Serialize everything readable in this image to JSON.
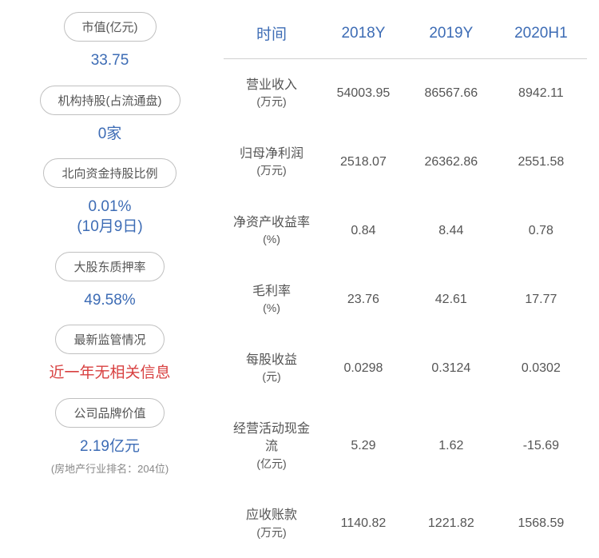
{
  "left_stats": [
    {
      "label": "市值(亿元)",
      "value": "33.75",
      "valueColor": "blue",
      "subtext": ""
    },
    {
      "label": "机构持股(占流通盘)",
      "value": "0家",
      "valueColor": "blue",
      "subtext": ""
    },
    {
      "label": "北向资金持股比例",
      "value": "0.01%\n(10月9日)",
      "valueColor": "blue",
      "subtext": ""
    },
    {
      "label": "大股东质押率",
      "value": "49.58%",
      "valueColor": "blue",
      "subtext": ""
    },
    {
      "label": "最新监管情况",
      "value": "近一年无相关信息",
      "valueColor": "red",
      "subtext": ""
    },
    {
      "label": "公司品牌价值",
      "value": "2.19亿元",
      "valueColor": "blue",
      "subtext": "(房地产行业排名：204位)"
    }
  ],
  "table": {
    "headers": [
      "时间",
      "2018Y",
      "2019Y",
      "2020H1"
    ],
    "rows": [
      {
        "label": "营业收入",
        "unit": "(万元)",
        "values": [
          "54003.95",
          "86567.66",
          "8942.11"
        ]
      },
      {
        "label": "归母净利润",
        "unit": "(万元)",
        "values": [
          "2518.07",
          "26362.86",
          "2551.58"
        ]
      },
      {
        "label": "净资产收益率",
        "unit": "(%)",
        "values": [
          "0.84",
          "8.44",
          "0.78"
        ]
      },
      {
        "label": "毛利率",
        "unit": "(%)",
        "values": [
          "23.76",
          "42.61",
          "17.77"
        ]
      },
      {
        "label": "每股收益",
        "unit": "(元)",
        "values": [
          "0.0298",
          "0.3124",
          "0.0302"
        ]
      },
      {
        "label": "经营活动现金流",
        "unit": "(亿元)",
        "values": [
          "5.29",
          "1.62",
          "-15.69"
        ]
      },
      {
        "label": "应收账款",
        "unit": "(万元)",
        "values": [
          "1140.82",
          "1221.82",
          "1568.59"
        ]
      }
    ]
  },
  "colors": {
    "blue": "#3d6cb5",
    "red": "#d84040",
    "textGray": "#555555",
    "subtextGray": "#888888",
    "border": "#c0c0c0"
  }
}
